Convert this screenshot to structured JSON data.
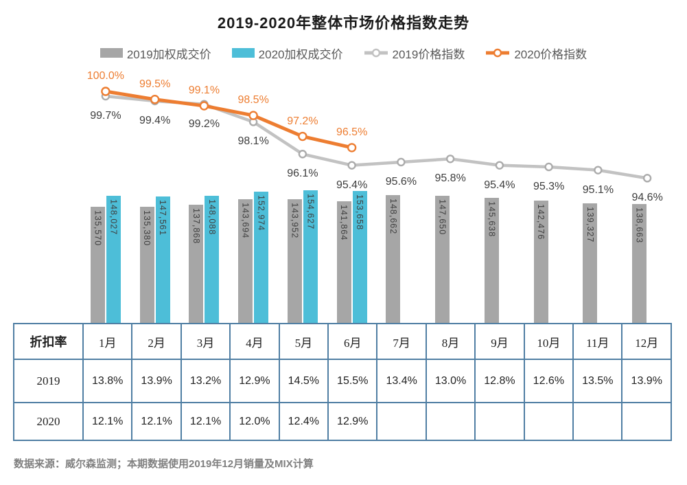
{
  "title": "2019-2020年整体市场价格指数走势",
  "footer": "数据来源：威尔森监测；本期数据使用2019年12月销量及MIX计算",
  "colors": {
    "bar_2019": "#A6A6A6",
    "bar_2020": "#4DBED8",
    "line_2019": "#C2C2C2",
    "line_2020": "#ED7D31",
    "table_border": "#4F7EA3",
    "label_text": "#3D3D3D",
    "legend_text": "#595959",
    "footer_text": "#808080"
  },
  "legend": [
    {
      "label": "2019加权成交价",
      "type": "bar",
      "color": "#A6A6A6"
    },
    {
      "label": "2020加权成交价",
      "type": "bar",
      "color": "#4DBED8"
    },
    {
      "label": "2019价格指数",
      "type": "line",
      "color": "#C2C2C2"
    },
    {
      "label": "2020价格指数",
      "type": "line",
      "color": "#ED7D31"
    }
  ],
  "chart_data": {
    "type": "bar+line",
    "title": "2019-2020年整体市场价格指数走势",
    "categories": [
      "1月",
      "2月",
      "3月",
      "4月",
      "5月",
      "6月",
      "7月",
      "8月",
      "9月",
      "10月",
      "11月",
      "12月"
    ],
    "series": [
      {
        "name": "2019加权成交价",
        "type": "bar",
        "color": "#A6A6A6",
        "values": [
          135570,
          135380,
          137868,
          143694,
          143952,
          141864,
          148662,
          147650,
          145638,
          142476,
          139327,
          138663
        ]
      },
      {
        "name": "2020加权成交价",
        "type": "bar",
        "color": "#4DBED8",
        "values": [
          148027,
          147561,
          148088,
          152974,
          154627,
          153658,
          null,
          null,
          null,
          null,
          null,
          null
        ]
      },
      {
        "name": "2019价格指数",
        "type": "line",
        "color": "#C2C2C2",
        "unit": "%",
        "values": [
          99.7,
          99.4,
          99.2,
          98.1,
          96.1,
          95.4,
          95.6,
          95.8,
          95.4,
          95.3,
          95.1,
          94.6
        ]
      },
      {
        "name": "2020价格指数",
        "type": "line",
        "color": "#ED7D31",
        "unit": "%",
        "values": [
          100.0,
          99.5,
          99.1,
          98.5,
          97.2,
          96.5,
          null,
          null,
          null,
          null,
          null,
          null
        ]
      }
    ],
    "legend_position": "top",
    "grid": false,
    "value_labels": true
  },
  "table": {
    "corner": "折扣率",
    "columns": [
      "1月",
      "2月",
      "3月",
      "4月",
      "5月",
      "6月",
      "7月",
      "8月",
      "9月",
      "10月",
      "11月",
      "12月"
    ],
    "rows": [
      {
        "label": "2019",
        "values": [
          "13.8%",
          "13.9%",
          "13.2%",
          "12.9%",
          "14.5%",
          "15.5%",
          "13.4%",
          "13.0%",
          "12.8%",
          "12.6%",
          "13.5%",
          "13.9%"
        ]
      },
      {
        "label": "2020",
        "values": [
          "12.1%",
          "12.1%",
          "12.1%",
          "12.0%",
          "12.4%",
          "12.9%",
          "",
          "",
          "",
          "",
          "",
          ""
        ]
      }
    ]
  }
}
